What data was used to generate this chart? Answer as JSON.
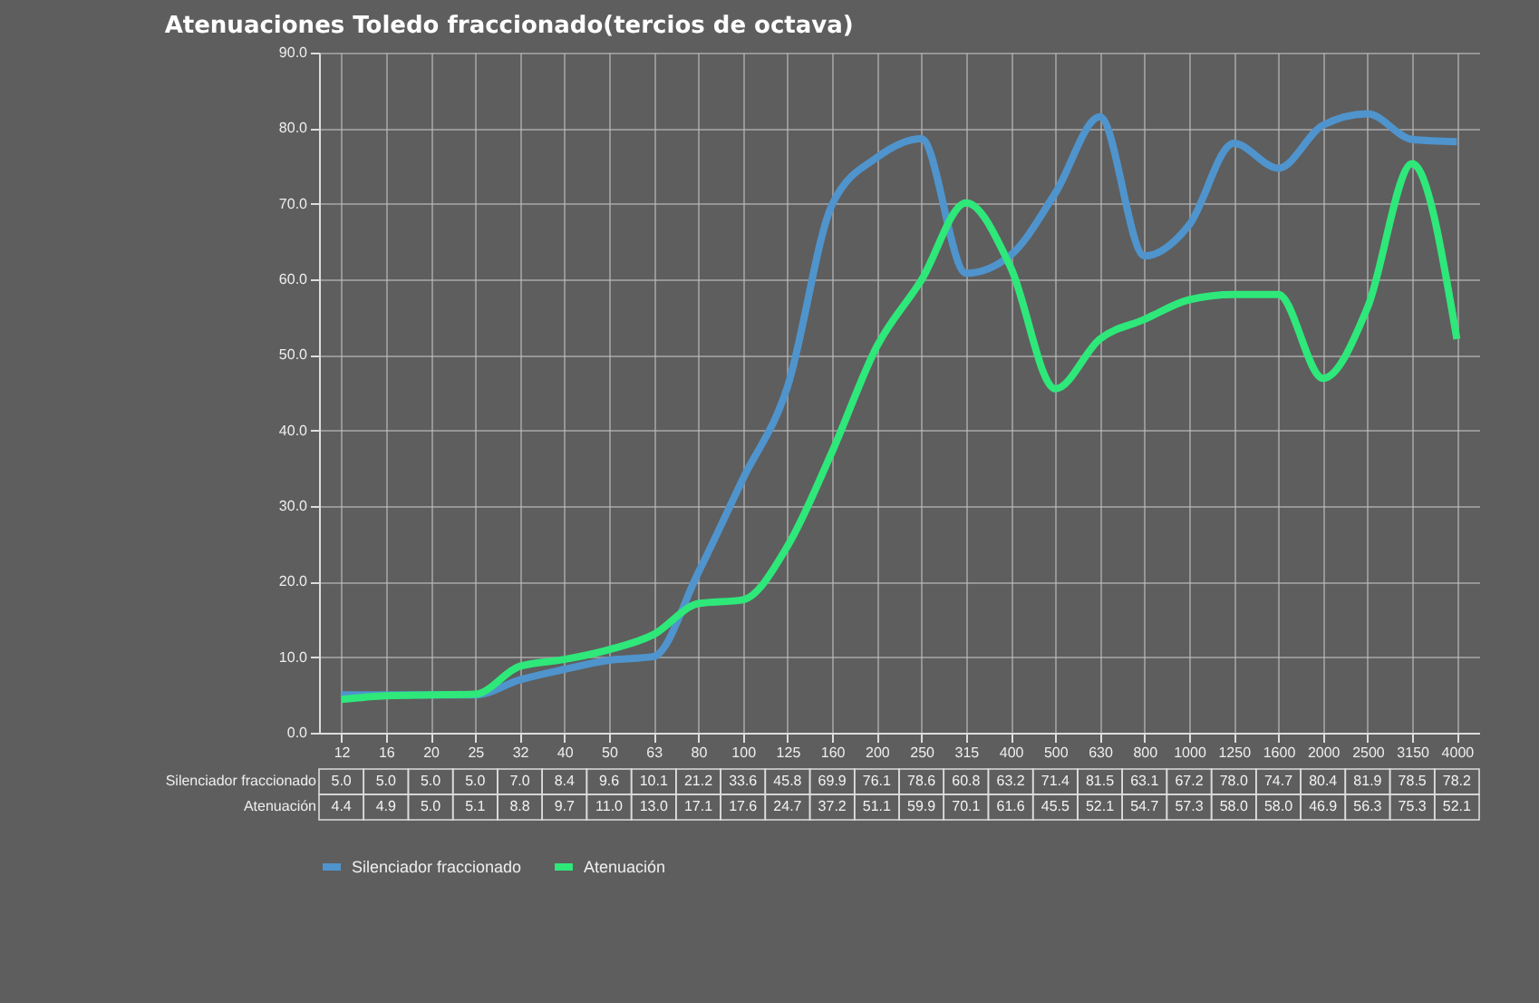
{
  "chart_data": {
    "type": "line",
    "title": "Atenuaciones Toledo fraccionado(tercios de octava)",
    "categories": [
      "12",
      "16",
      "20",
      "25",
      "32",
      "40",
      "50",
      "63",
      "80",
      "100",
      "125",
      "160",
      "200",
      "250",
      "315",
      "400",
      "500",
      "630",
      "800",
      "1000",
      "1250",
      "1600",
      "2000",
      "2500",
      "3150",
      "4000"
    ],
    "series": [
      {
        "name": "Silenciador fraccionado",
        "color": "#4f94cd",
        "values": [
          5.0,
          5.0,
          5.0,
          5.0,
          7.0,
          8.4,
          9.6,
          10.1,
          21.2,
          33.6,
          45.8,
          69.9,
          76.1,
          78.6,
          60.8,
          63.2,
          71.4,
          81.5,
          63.1,
          67.2,
          78.0,
          74.7,
          80.4,
          81.9,
          78.5,
          78.2
        ],
        "value_labels": [
          "5.0",
          "5.0",
          "5.0",
          "5.0",
          "7.0",
          "8.4",
          "9.6",
          "10.1",
          "21.2",
          "33.6",
          "45.8",
          "69.9",
          "76.1",
          "78.6",
          "60.8",
          "63.2",
          "71.4",
          "81.5",
          "63.1",
          "67.2",
          "78.0",
          "74.7",
          "80.4",
          "81.9",
          "78.5",
          "78.2"
        ]
      },
      {
        "name": "Atenuación",
        "color": "#2ee87a",
        "values": [
          4.4,
          4.9,
          5.0,
          5.1,
          8.8,
          9.7,
          11.0,
          13.0,
          17.1,
          17.6,
          24.7,
          37.2,
          51.1,
          59.9,
          70.1,
          61.6,
          45.5,
          52.1,
          54.7,
          57.3,
          58.0,
          58.0,
          46.9,
          56.3,
          75.3,
          52.1
        ],
        "value_labels": [
          "4.4",
          "4.9",
          "5.0",
          "5.1",
          "8.8",
          "9.7",
          "11.0",
          "13.0",
          "17.1",
          "17.6",
          "24.7",
          "37.2",
          "51.1",
          "59.9",
          "70.1",
          "61.6",
          "45.5",
          "52.1",
          "54.7",
          "57.3",
          "58.0",
          "58.0",
          "46.9",
          "56.3",
          "75.3",
          "52.1"
        ]
      }
    ],
    "ylim": [
      0,
      90
    ],
    "yticks": [
      {
        "value": 0,
        "label": "0.0"
      },
      {
        "value": 10,
        "label": "10.0"
      },
      {
        "value": 20,
        "label": "20.0"
      },
      {
        "value": 30,
        "label": "30.0"
      },
      {
        "value": 40,
        "label": "40.0"
      },
      {
        "value": 50,
        "label": "50.0"
      },
      {
        "value": 60,
        "label": "60.0"
      },
      {
        "value": 70,
        "label": "70.0"
      },
      {
        "value": 80,
        "label": "80.0"
      },
      {
        "value": 90,
        "label": "90.0"
      }
    ],
    "grid": true,
    "legend": "bottom",
    "line_style": "solid",
    "marker": "none"
  }
}
